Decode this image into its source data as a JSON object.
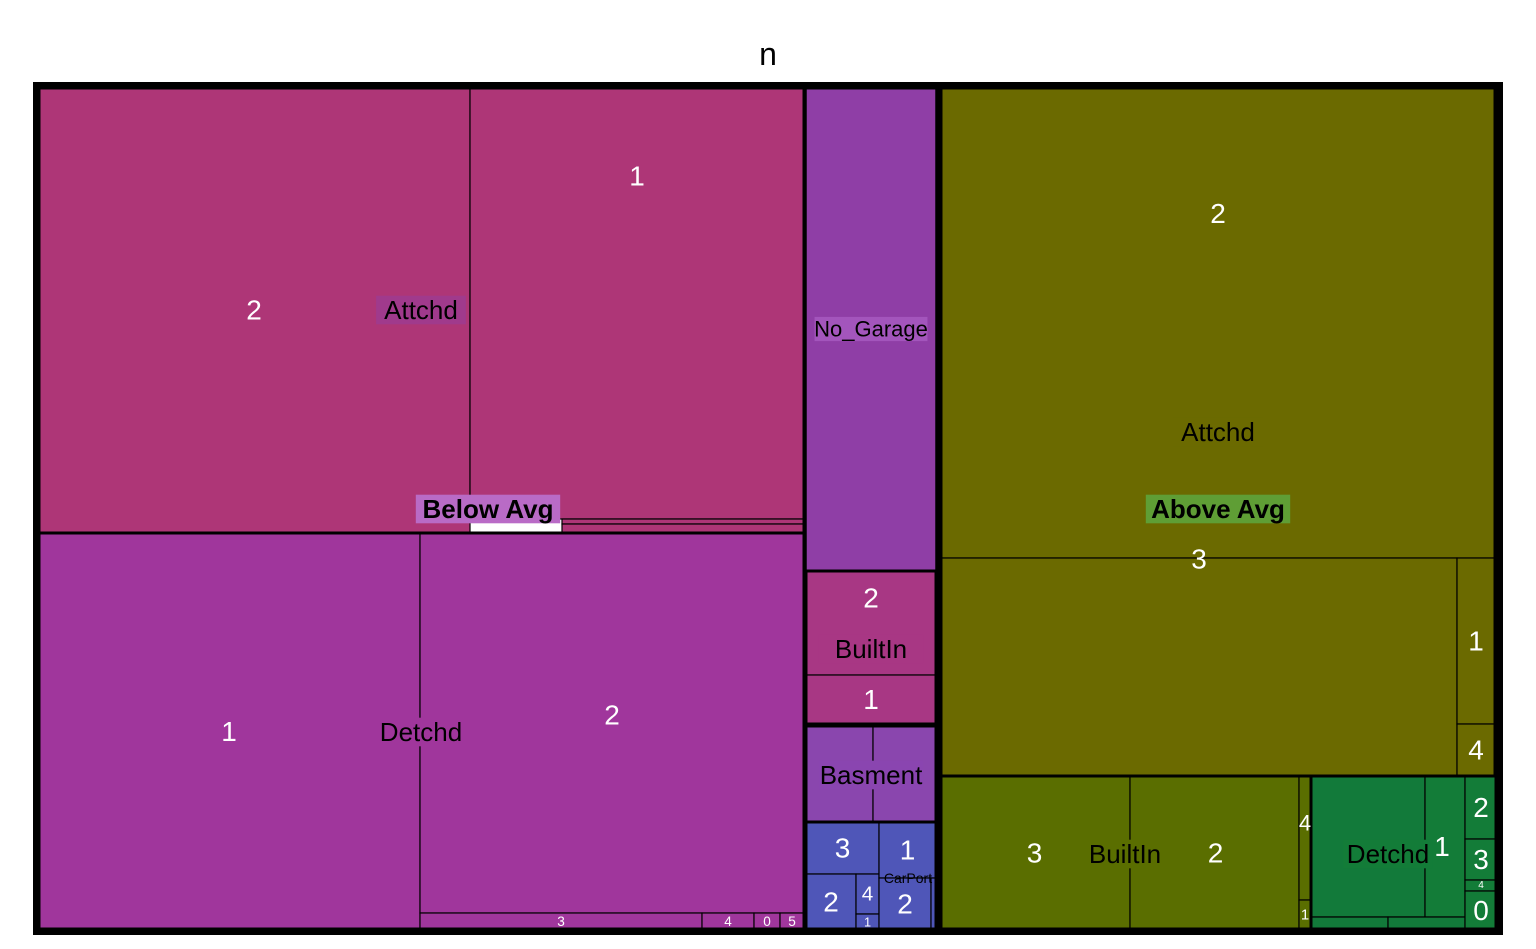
{
  "chart_data": {
    "type": "treemap",
    "title": "n",
    "value_label": "n",
    "groups": [
      {
        "name": "Below Avg",
        "children": [
          {
            "name": "Attchd",
            "children": [
              {
                "name": "2",
                "value": 190
              },
              {
                "name": "1",
                "value": 160
              },
              {
                "name": "",
                "value": 2
              },
              {
                "name": "",
                "value": 2
              }
            ]
          },
          {
            "name": "Detchd",
            "children": [
              {
                "name": "1",
                "value": 150
              },
              {
                "name": "2",
                "value": 150
              },
              {
                "name": "3",
                "value": 3
              },
              {
                "name": "4",
                "value": 1
              },
              {
                "name": "0",
                "value": 0.4
              },
              {
                "name": "5",
                "value": 0.3
              }
            ]
          },
          {
            "name": "No_Garage",
            "value": 81
          },
          {
            "name": "BuiltIn",
            "children": [
              {
                "name": "2",
                "value": 17
              },
              {
                "name": "1",
                "value": 8
              }
            ]
          },
          {
            "name": "Basment",
            "children": [
              {
                "name": "",
                "value": 8
              },
              {
                "name": "",
                "value": 8
              }
            ]
          },
          {
            "name": "CarPort",
            "children": [
              {
                "name": "3",
                "value": 4.5
              },
              {
                "name": "2",
                "value": 4
              },
              {
                "name": "4",
                "value": 1.5
              },
              {
                "name": "1",
                "value": 0.5
              },
              {
                "name": "1",
                "value": 4
              },
              {
                "name": "2",
                "value": 4
              },
              {
                "name": "",
                "value": 0.3
              }
            ]
          }
        ]
      },
      {
        "name": "Above Avg",
        "children": [
          {
            "name": "Attchd",
            "children": [
              {
                "name": "2",
                "value": 320
              },
              {
                "name": "3",
                "value": 150
              },
              {
                "name": "1",
                "value": 8
              },
              {
                "name": "4",
                "value": 5
              }
            ]
          },
          {
            "name": "BuiltIn",
            "children": [
              {
                "name": "3",
                "value": 60
              },
              {
                "name": "2",
                "value": 55
              },
              {
                "name": "4",
                "value": 3
              },
              {
                "name": "1",
                "value": 1
              }
            ]
          },
          {
            "name": "Detchd",
            "children": [
              {
                "name": "",
                "value": 40
              },
              {
                "name": "1",
                "value": 10
              },
              {
                "name": "",
                "value": 1
              },
              {
                "name": "",
                "value": 1
              },
              {
                "name": "2",
                "value": 4
              },
              {
                "name": "3",
                "value": 3
              },
              {
                "name": "4",
                "value": 0.5
              },
              {
                "name": "0",
                "value": 3
              }
            ]
          }
        ]
      }
    ],
    "legend": "none"
  }
}
